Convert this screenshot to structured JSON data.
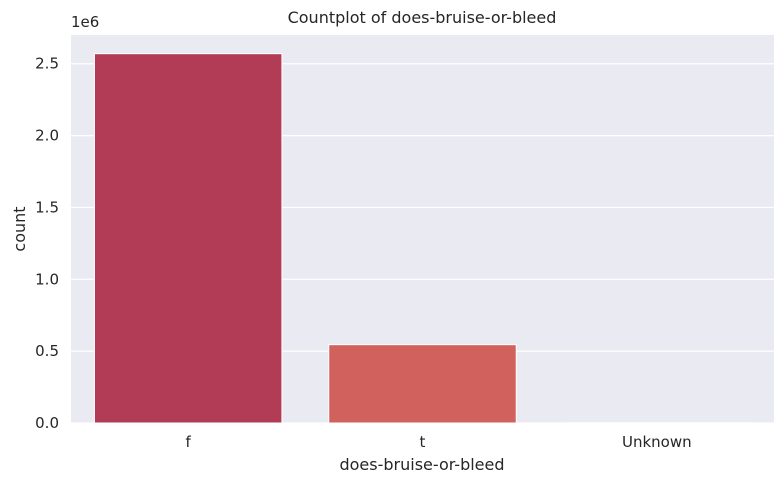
{
  "chart_data": {
    "type": "bar",
    "title": "Countplot of does-bruise-or-bleed",
    "xlabel": "does-bruise-or-bleed",
    "ylabel": "count",
    "y_offset_label": "1e6",
    "categories": [
      "f",
      "t",
      "Unknown"
    ],
    "values": [
      2570000,
      545000,
      1500
    ],
    "ylim": [
      0,
      2700000
    ],
    "yticks": [
      0,
      500000,
      1000000,
      1500000,
      2000000,
      2500000
    ],
    "ytick_labels": [
      "0.0",
      "0.5",
      "1.0",
      "1.5",
      "2.0",
      "2.5"
    ],
    "grid": true,
    "style": {
      "background": "#eaeaf2",
      "grid_color": "#ffffff",
      "bar_colors": [
        "#b23c55",
        "#d1615d",
        "#e88a6e"
      ]
    }
  }
}
